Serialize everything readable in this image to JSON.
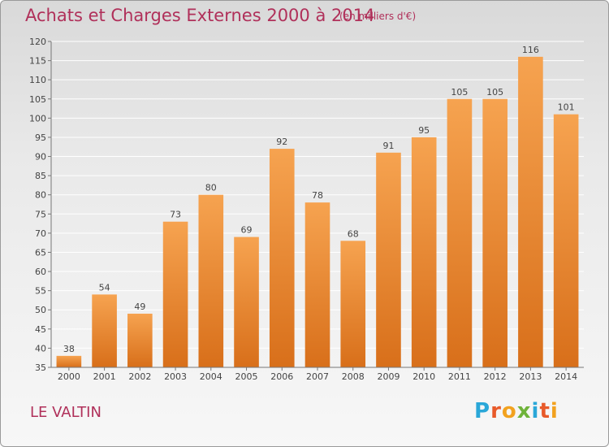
{
  "title": "Achats et Charges Externes 2000 à 2014",
  "subtitle": "(en milliers d'€)",
  "location": "LE VALTIN",
  "logo": {
    "letters": [
      "P",
      "r",
      "o",
      "x",
      "i",
      "t",
      "i"
    ],
    "colors": [
      "#2aa7d8",
      "#e85a2a",
      "#f2a21f",
      "#6fb33a",
      "#2aa7d8",
      "#e85a2a",
      "#f2a21f"
    ]
  },
  "colors": {
    "bar_top": "#f6a350",
    "bar_bottom": "#d86f1a",
    "title": "#b0305a"
  },
  "chart_data": {
    "type": "bar",
    "title": "Achats et Charges Externes 2000 à 2014",
    "subtitle": "(en milliers d'€)",
    "categories": [
      "2000",
      "2001",
      "2002",
      "2003",
      "2004",
      "2005",
      "2006",
      "2007",
      "2008",
      "2009",
      "2010",
      "2011",
      "2012",
      "2013",
      "2014"
    ],
    "values": [
      38,
      54,
      49,
      73,
      80,
      69,
      92,
      78,
      68,
      91,
      95,
      105,
      105,
      116,
      101
    ],
    "ylim": [
      35,
      120
    ],
    "yticks": [
      35,
      40,
      45,
      50,
      55,
      60,
      65,
      70,
      75,
      80,
      85,
      90,
      95,
      100,
      105,
      110,
      115,
      120
    ],
    "grid": true
  }
}
